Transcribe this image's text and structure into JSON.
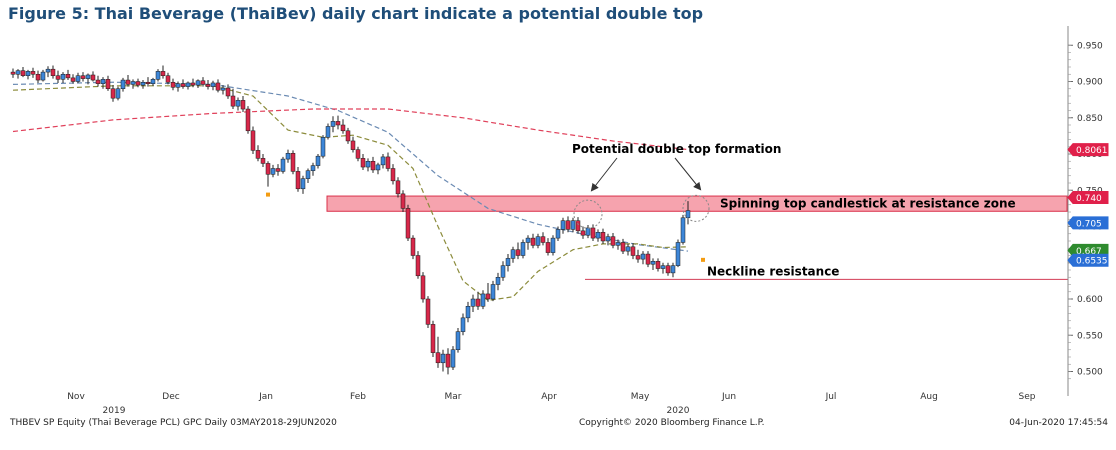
{
  "title": "Figure 5: Thai Beverage (ThaiBev) daily chart indicate a potential double top",
  "footer": {
    "left": "THBEV SP Equity (Thai Beverage PCL) GPC  Daily 03MAY2018-29JUN2020",
    "center": "Copyright© 2020 Bloomberg Finance L.P.",
    "right": "04-Jun-2020 17:45:54"
  },
  "chart_data": {
    "type": "candlestick",
    "title": "Figure 5: Thai Beverage (ThaiBev) daily chart indicate a potential double top",
    "x_axis": {
      "months": [
        "Nov",
        "Dec",
        "Jan",
        "Feb",
        "Mar",
        "Apr",
        "May",
        "Jun",
        "Jul",
        "Aug",
        "Sep"
      ],
      "years": [
        {
          "label": "2019",
          "under": "Nov"
        },
        {
          "label": "2020",
          "under": "May"
        }
      ]
    },
    "y_axis": {
      "ticks": [
        "0.950",
        "0.900",
        "0.850",
        "0.800",
        "0.750",
        "0.700",
        "0.650",
        "0.600",
        "0.550",
        "0.500"
      ],
      "ylim": [
        0.48,
        0.96
      ],
      "position": "right"
    },
    "price_labels": [
      {
        "text": "0.8061",
        "value": 0.8061,
        "color": "#e0204a"
      },
      {
        "text": "0.740",
        "value": 0.74,
        "color": "#e0204a"
      },
      {
        "text": "0.705",
        "value": 0.705,
        "color": "#2a6fd6"
      },
      {
        "text": "0.667",
        "value": 0.667,
        "color": "#2e8b2e"
      },
      {
        "text": "0.6535",
        "value": 0.6535,
        "color": "#2a6fd6"
      }
    ],
    "candles": [
      {
        "d": 0,
        "o": 0.913,
        "h": 0.918,
        "l": 0.905,
        "c": 0.91
      },
      {
        "d": 1,
        "o": 0.91,
        "h": 0.917,
        "l": 0.904,
        "c": 0.915
      },
      {
        "d": 2,
        "o": 0.915,
        "h": 0.92,
        "l": 0.906,
        "c": 0.908
      },
      {
        "d": 3,
        "o": 0.908,
        "h": 0.916,
        "l": 0.903,
        "c": 0.914
      },
      {
        "d": 4,
        "o": 0.914,
        "h": 0.919,
        "l": 0.905,
        "c": 0.91
      },
      {
        "d": 5,
        "o": 0.91,
        "h": 0.915,
        "l": 0.898,
        "c": 0.902
      },
      {
        "d": 6,
        "o": 0.902,
        "h": 0.916,
        "l": 0.9,
        "c": 0.913
      },
      {
        "d": 7,
        "o": 0.913,
        "h": 0.921,
        "l": 0.906,
        "c": 0.917
      },
      {
        "d": 8,
        "o": 0.917,
        "h": 0.922,
        "l": 0.904,
        "c": 0.908
      },
      {
        "d": 9,
        "o": 0.908,
        "h": 0.915,
        "l": 0.898,
        "c": 0.903
      },
      {
        "d": 10,
        "o": 0.903,
        "h": 0.913,
        "l": 0.898,
        "c": 0.91
      },
      {
        "d": 11,
        "o": 0.91,
        "h": 0.916,
        "l": 0.902,
        "c": 0.905
      },
      {
        "d": 12,
        "o": 0.905,
        "h": 0.91,
        "l": 0.897,
        "c": 0.9
      },
      {
        "d": 13,
        "o": 0.9,
        "h": 0.912,
        "l": 0.898,
        "c": 0.908
      },
      {
        "d": 14,
        "o": 0.908,
        "h": 0.913,
        "l": 0.9,
        "c": 0.904
      },
      {
        "d": 15,
        "o": 0.904,
        "h": 0.911,
        "l": 0.896,
        "c": 0.909
      },
      {
        "d": 16,
        "o": 0.909,
        "h": 0.914,
        "l": 0.9,
        "c": 0.902
      },
      {
        "d": 17,
        "o": 0.902,
        "h": 0.908,
        "l": 0.893,
        "c": 0.897
      },
      {
        "d": 18,
        "o": 0.897,
        "h": 0.906,
        "l": 0.89,
        "c": 0.903
      },
      {
        "d": 19,
        "o": 0.903,
        "h": 0.908,
        "l": 0.887,
        "c": 0.89
      },
      {
        "d": 20,
        "o": 0.89,
        "h": 0.895,
        "l": 0.872,
        "c": 0.877
      },
      {
        "d": 21,
        "o": 0.877,
        "h": 0.893,
        "l": 0.874,
        "c": 0.89
      },
      {
        "d": 22,
        "o": 0.89,
        "h": 0.905,
        "l": 0.886,
        "c": 0.902
      },
      {
        "d": 23,
        "o": 0.902,
        "h": 0.909,
        "l": 0.893,
        "c": 0.896
      },
      {
        "d": 24,
        "o": 0.896,
        "h": 0.903,
        "l": 0.89,
        "c": 0.9
      },
      {
        "d": 25,
        "o": 0.9,
        "h": 0.904,
        "l": 0.892,
        "c": 0.895
      },
      {
        "d": 26,
        "o": 0.895,
        "h": 0.902,
        "l": 0.89,
        "c": 0.899
      },
      {
        "d": 27,
        "o": 0.899,
        "h": 0.906,
        "l": 0.893,
        "c": 0.897
      },
      {
        "d": 28,
        "o": 0.897,
        "h": 0.905,
        "l": 0.894,
        "c": 0.903
      },
      {
        "d": 29,
        "o": 0.903,
        "h": 0.917,
        "l": 0.9,
        "c": 0.914
      },
      {
        "d": 30,
        "o": 0.914,
        "h": 0.922,
        "l": 0.904,
        "c": 0.908
      },
      {
        "d": 31,
        "o": 0.908,
        "h": 0.912,
        "l": 0.896,
        "c": 0.899
      },
      {
        "d": 32,
        "o": 0.899,
        "h": 0.904,
        "l": 0.888,
        "c": 0.892
      },
      {
        "d": 33,
        "o": 0.892,
        "h": 0.9,
        "l": 0.886,
        "c": 0.897
      },
      {
        "d": 34,
        "o": 0.897,
        "h": 0.903,
        "l": 0.89,
        "c": 0.893
      },
      {
        "d": 35,
        "o": 0.893,
        "h": 0.9,
        "l": 0.889,
        "c": 0.898
      },
      {
        "d": 36,
        "o": 0.898,
        "h": 0.904,
        "l": 0.892,
        "c": 0.895
      },
      {
        "d": 37,
        "o": 0.895,
        "h": 0.903,
        "l": 0.891,
        "c": 0.901
      },
      {
        "d": 38,
        "o": 0.901,
        "h": 0.906,
        "l": 0.893,
        "c": 0.896
      },
      {
        "d": 39,
        "o": 0.896,
        "h": 0.902,
        "l": 0.889,
        "c": 0.893
      },
      {
        "d": 40,
        "o": 0.893,
        "h": 0.901,
        "l": 0.888,
        "c": 0.898
      },
      {
        "d": 41,
        "o": 0.898,
        "h": 0.903,
        "l": 0.885,
        "c": 0.888
      },
      {
        "d": 42,
        "o": 0.888,
        "h": 0.895,
        "l": 0.882,
        "c": 0.891
      },
      {
        "d": 43,
        "o": 0.891,
        "h": 0.896,
        "l": 0.876,
        "c": 0.88
      },
      {
        "d": 44,
        "o": 0.88,
        "h": 0.89,
        "l": 0.862,
        "c": 0.866
      },
      {
        "d": 45,
        "o": 0.866,
        "h": 0.878,
        "l": 0.86,
        "c": 0.874
      },
      {
        "d": 46,
        "o": 0.874,
        "h": 0.88,
        "l": 0.858,
        "c": 0.862
      },
      {
        "d": 47,
        "o": 0.862,
        "h": 0.866,
        "l": 0.828,
        "c": 0.832
      },
      {
        "d": 48,
        "o": 0.832,
        "h": 0.838,
        "l": 0.8,
        "c": 0.805
      },
      {
        "d": 49,
        "o": 0.805,
        "h": 0.812,
        "l": 0.79,
        "c": 0.794
      },
      {
        "d": 50,
        "o": 0.794,
        "h": 0.8,
        "l": 0.782,
        "c": 0.787
      },
      {
        "d": 51,
        "o": 0.787,
        "h": 0.79,
        "l": 0.755,
        "c": 0.772
      },
      {
        "d": 52,
        "o": 0.772,
        "h": 0.785,
        "l": 0.768,
        "c": 0.78
      },
      {
        "d": 53,
        "o": 0.78,
        "h": 0.786,
        "l": 0.77,
        "c": 0.776
      },
      {
        "d": 54,
        "o": 0.776,
        "h": 0.796,
        "l": 0.773,
        "c": 0.793
      },
      {
        "d": 55,
        "o": 0.793,
        "h": 0.806,
        "l": 0.788,
        "c": 0.801
      },
      {
        "d": 56,
        "o": 0.801,
        "h": 0.805,
        "l": 0.772,
        "c": 0.776
      },
      {
        "d": 57,
        "o": 0.776,
        "h": 0.782,
        "l": 0.748,
        "c": 0.752
      },
      {
        "d": 58,
        "o": 0.752,
        "h": 0.77,
        "l": 0.745,
        "c": 0.766
      },
      {
        "d": 59,
        "o": 0.766,
        "h": 0.78,
        "l": 0.76,
        "c": 0.777
      },
      {
        "d": 60,
        "o": 0.777,
        "h": 0.788,
        "l": 0.77,
        "c": 0.784
      },
      {
        "d": 61,
        "o": 0.784,
        "h": 0.8,
        "l": 0.78,
        "c": 0.797
      },
      {
        "d": 62,
        "o": 0.797,
        "h": 0.826,
        "l": 0.794,
        "c": 0.823
      },
      {
        "d": 63,
        "o": 0.823,
        "h": 0.842,
        "l": 0.82,
        "c": 0.838
      },
      {
        "d": 64,
        "o": 0.838,
        "h": 0.852,
        "l": 0.83,
        "c": 0.845
      },
      {
        "d": 65,
        "o": 0.845,
        "h": 0.853,
        "l": 0.834,
        "c": 0.84
      },
      {
        "d": 66,
        "o": 0.84,
        "h": 0.848,
        "l": 0.828,
        "c": 0.832
      },
      {
        "d": 67,
        "o": 0.832,
        "h": 0.836,
        "l": 0.814,
        "c": 0.818
      },
      {
        "d": 68,
        "o": 0.818,
        "h": 0.824,
        "l": 0.802,
        "c": 0.806
      },
      {
        "d": 69,
        "o": 0.806,
        "h": 0.81,
        "l": 0.79,
        "c": 0.794
      },
      {
        "d": 70,
        "o": 0.794,
        "h": 0.8,
        "l": 0.778,
        "c": 0.782
      },
      {
        "d": 71,
        "o": 0.782,
        "h": 0.794,
        "l": 0.776,
        "c": 0.79
      },
      {
        "d": 72,
        "o": 0.79,
        "h": 0.796,
        "l": 0.774,
        "c": 0.778
      },
      {
        "d": 73,
        "o": 0.778,
        "h": 0.788,
        "l": 0.772,
        "c": 0.785
      },
      {
        "d": 74,
        "o": 0.785,
        "h": 0.8,
        "l": 0.78,
        "c": 0.796
      },
      {
        "d": 75,
        "o": 0.796,
        "h": 0.802,
        "l": 0.776,
        "c": 0.78
      },
      {
        "d": 76,
        "o": 0.78,
        "h": 0.786,
        "l": 0.758,
        "c": 0.763
      },
      {
        "d": 77,
        "o": 0.763,
        "h": 0.768,
        "l": 0.74,
        "c": 0.745
      },
      {
        "d": 78,
        "o": 0.745,
        "h": 0.75,
        "l": 0.72,
        "c": 0.725
      },
      {
        "d": 79,
        "o": 0.725,
        "h": 0.73,
        "l": 0.68,
        "c": 0.684
      },
      {
        "d": 80,
        "o": 0.684,
        "h": 0.688,
        "l": 0.655,
        "c": 0.66
      },
      {
        "d": 81,
        "o": 0.66,
        "h": 0.666,
        "l": 0.628,
        "c": 0.632
      },
      {
        "d": 82,
        "o": 0.632,
        "h": 0.637,
        "l": 0.595,
        "c": 0.6
      },
      {
        "d": 83,
        "o": 0.6,
        "h": 0.604,
        "l": 0.56,
        "c": 0.565
      },
      {
        "d": 84,
        "o": 0.565,
        "h": 0.57,
        "l": 0.52,
        "c": 0.526
      },
      {
        "d": 85,
        "o": 0.526,
        "h": 0.548,
        "l": 0.505,
        "c": 0.512
      },
      {
        "d": 86,
        "o": 0.512,
        "h": 0.53,
        "l": 0.5,
        "c": 0.524
      },
      {
        "d": 87,
        "o": 0.524,
        "h": 0.532,
        "l": 0.496,
        "c": 0.506
      },
      {
        "d": 88,
        "o": 0.506,
        "h": 0.535,
        "l": 0.502,
        "c": 0.53
      },
      {
        "d": 89,
        "o": 0.53,
        "h": 0.56,
        "l": 0.526,
        "c": 0.555
      },
      {
        "d": 90,
        "o": 0.555,
        "h": 0.58,
        "l": 0.55,
        "c": 0.574
      },
      {
        "d": 91,
        "o": 0.574,
        "h": 0.596,
        "l": 0.568,
        "c": 0.59
      },
      {
        "d": 92,
        "o": 0.59,
        "h": 0.606,
        "l": 0.582,
        "c": 0.6
      },
      {
        "d": 93,
        "o": 0.6,
        "h": 0.61,
        "l": 0.585,
        "c": 0.59
      },
      {
        "d": 94,
        "o": 0.59,
        "h": 0.612,
        "l": 0.586,
        "c": 0.607
      },
      {
        "d": 95,
        "o": 0.607,
        "h": 0.622,
        "l": 0.596,
        "c": 0.6
      },
      {
        "d": 96,
        "o": 0.6,
        "h": 0.625,
        "l": 0.597,
        "c": 0.62
      },
      {
        "d": 97,
        "o": 0.62,
        "h": 0.636,
        "l": 0.612,
        "c": 0.63
      },
      {
        "d": 98,
        "o": 0.63,
        "h": 0.652,
        "l": 0.625,
        "c": 0.646
      },
      {
        "d": 99,
        "o": 0.646,
        "h": 0.662,
        "l": 0.638,
        "c": 0.656
      },
      {
        "d": 100,
        "o": 0.656,
        "h": 0.672,
        "l": 0.65,
        "c": 0.668
      },
      {
        "d": 101,
        "o": 0.668,
        "h": 0.678,
        "l": 0.655,
        "c": 0.66
      },
      {
        "d": 102,
        "o": 0.66,
        "h": 0.682,
        "l": 0.656,
        "c": 0.678
      },
      {
        "d": 103,
        "o": 0.678,
        "h": 0.688,
        "l": 0.668,
        "c": 0.684
      },
      {
        "d": 104,
        "o": 0.684,
        "h": 0.69,
        "l": 0.67,
        "c": 0.674
      },
      {
        "d": 105,
        "o": 0.674,
        "h": 0.69,
        "l": 0.67,
        "c": 0.686
      },
      {
        "d": 106,
        "o": 0.686,
        "h": 0.692,
        "l": 0.674,
        "c": 0.678
      },
      {
        "d": 107,
        "o": 0.678,
        "h": 0.684,
        "l": 0.66,
        "c": 0.664
      },
      {
        "d": 108,
        "o": 0.664,
        "h": 0.688,
        "l": 0.66,
        "c": 0.684
      },
      {
        "d": 109,
        "o": 0.684,
        "h": 0.7,
        "l": 0.68,
        "c": 0.696
      },
      {
        "d": 110,
        "o": 0.696,
        "h": 0.712,
        "l": 0.69,
        "c": 0.708
      },
      {
        "d": 111,
        "o": 0.708,
        "h": 0.714,
        "l": 0.692,
        "c": 0.696
      },
      {
        "d": 112,
        "o": 0.696,
        "h": 0.712,
        "l": 0.692,
        "c": 0.708
      },
      {
        "d": 113,
        "o": 0.708,
        "h": 0.713,
        "l": 0.69,
        "c": 0.694
      },
      {
        "d": 114,
        "o": 0.694,
        "h": 0.7,
        "l": 0.683,
        "c": 0.688
      },
      {
        "d": 115,
        "o": 0.688,
        "h": 0.702,
        "l": 0.684,
        "c": 0.698
      },
      {
        "d": 116,
        "o": 0.698,
        "h": 0.703,
        "l": 0.68,
        "c": 0.684
      },
      {
        "d": 117,
        "o": 0.684,
        "h": 0.696,
        "l": 0.679,
        "c": 0.692
      },
      {
        "d": 118,
        "o": 0.692,
        "h": 0.697,
        "l": 0.676,
        "c": 0.68
      },
      {
        "d": 119,
        "o": 0.68,
        "h": 0.69,
        "l": 0.674,
        "c": 0.686
      },
      {
        "d": 120,
        "o": 0.686,
        "h": 0.691,
        "l": 0.67,
        "c": 0.674
      },
      {
        "d": 121,
        "o": 0.674,
        "h": 0.682,
        "l": 0.668,
        "c": 0.678
      },
      {
        "d": 122,
        "o": 0.678,
        "h": 0.683,
        "l": 0.662,
        "c": 0.666
      },
      {
        "d": 123,
        "o": 0.666,
        "h": 0.676,
        "l": 0.66,
        "c": 0.672
      },
      {
        "d": 124,
        "o": 0.672,
        "h": 0.677,
        "l": 0.655,
        "c": 0.66
      },
      {
        "d": 125,
        "o": 0.66,
        "h": 0.668,
        "l": 0.65,
        "c": 0.655
      },
      {
        "d": 126,
        "o": 0.655,
        "h": 0.666,
        "l": 0.648,
        "c": 0.662
      },
      {
        "d": 127,
        "o": 0.662,
        "h": 0.666,
        "l": 0.644,
        "c": 0.648
      },
      {
        "d": 128,
        "o": 0.648,
        "h": 0.656,
        "l": 0.64,
        "c": 0.652
      },
      {
        "d": 129,
        "o": 0.652,
        "h": 0.656,
        "l": 0.638,
        "c": 0.642
      },
      {
        "d": 130,
        "o": 0.642,
        "h": 0.65,
        "l": 0.635,
        "c": 0.646
      },
      {
        "d": 131,
        "o": 0.646,
        "h": 0.65,
        "l": 0.632,
        "c": 0.636
      },
      {
        "d": 132,
        "o": 0.636,
        "h": 0.65,
        "l": 0.63,
        "c": 0.646
      },
      {
        "d": 133,
        "o": 0.646,
        "h": 0.682,
        "l": 0.644,
        "c": 0.678
      },
      {
        "d": 134,
        "o": 0.678,
        "h": 0.716,
        "l": 0.675,
        "c": 0.712
      },
      {
        "d": 135,
        "o": 0.712,
        "h": 0.735,
        "l": 0.703,
        "c": 0.722
      }
    ],
    "moving_averages": [
      {
        "color": "#6b8bb3",
        "style": "dashed",
        "points": [
          [
            0,
            0.896
          ],
          [
            20,
            0.899
          ],
          [
            40,
            0.896
          ],
          [
            55,
            0.88
          ],
          [
            65,
            0.86
          ],
          [
            75,
            0.83
          ],
          [
            85,
            0.77
          ],
          [
            95,
            0.725
          ],
          [
            105,
            0.703
          ],
          [
            115,
            0.688
          ],
          [
            125,
            0.675
          ],
          [
            135,
            0.666
          ]
        ]
      },
      {
        "color": "#8c8c3c",
        "style": "dashed",
        "points": [
          [
            0,
            0.888
          ],
          [
            20,
            0.894
          ],
          [
            40,
            0.894
          ],
          [
            48,
            0.88
          ],
          [
            55,
            0.833
          ],
          [
            62,
            0.823
          ],
          [
            68,
            0.826
          ],
          [
            75,
            0.812
          ],
          [
            80,
            0.78
          ],
          [
            85,
            0.7
          ],
          [
            90,
            0.625
          ],
          [
            95,
            0.598
          ],
          [
            100,
            0.603
          ],
          [
            105,
            0.638
          ],
          [
            112,
            0.668
          ],
          [
            118,
            0.676
          ],
          [
            125,
            0.676
          ],
          [
            130,
            0.671
          ],
          [
            135,
            0.672
          ]
        ]
      },
      {
        "color": "#e0405a",
        "style": "dashed",
        "points": [
          [
            0,
            0.831
          ],
          [
            20,
            0.847
          ],
          [
            40,
            0.856
          ],
          [
            60,
            0.862
          ],
          [
            75,
            0.862
          ],
          [
            90,
            0.85
          ],
          [
            105,
            0.833
          ],
          [
            120,
            0.818
          ],
          [
            135,
            0.806
          ]
        ]
      }
    ],
    "resistance_zone": {
      "low": 0.721,
      "high": 0.742,
      "label": "Spinning top candlestick at resistance zone"
    },
    "neckline": {
      "value": 0.627,
      "label": "Neckline resistance"
    },
    "annotations": [
      {
        "text": "Potential double top formation"
      }
    ],
    "grid": false
  }
}
